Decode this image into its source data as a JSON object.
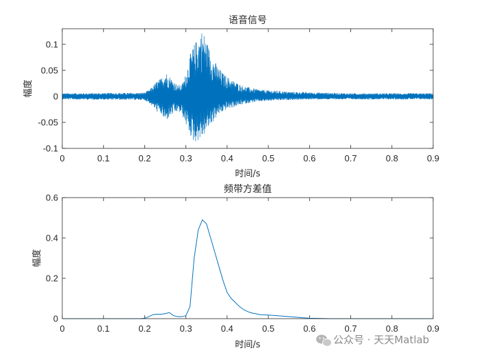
{
  "chart_data": [
    {
      "type": "line",
      "title": "语音信号",
      "xlabel": "时间/s",
      "ylabel": "幅度",
      "xlim": [
        0,
        0.9
      ],
      "ylim": [
        -0.1,
        0.13
      ],
      "xticks": [
        0,
        0.1,
        0.2,
        0.3,
        0.4,
        0.5,
        0.6,
        0.7,
        0.8,
        0.9
      ],
      "xtick_labels": [
        "0",
        "0.1",
        "0.2",
        "0.3",
        "0.4",
        "0.5",
        "0.6",
        "0.7",
        "0.8",
        "0.9"
      ],
      "yticks": [
        -0.1,
        -0.05,
        0,
        0.05,
        0.1
      ],
      "ytick_labels": [
        "-0.1",
        "-0.05",
        "0",
        "0.05",
        "0.1"
      ],
      "grid": false,
      "color": "#0072BD",
      "envelope": {
        "x": [
          0,
          0.19,
          0.2,
          0.21,
          0.22,
          0.23,
          0.24,
          0.25,
          0.26,
          0.27,
          0.28,
          0.29,
          0.3,
          0.31,
          0.32,
          0.33,
          0.34,
          0.35,
          0.36,
          0.37,
          0.38,
          0.39,
          0.4,
          0.42,
          0.44,
          0.46,
          0.48,
          0.5,
          0.52,
          0.55,
          0.6,
          0.65,
          0.7,
          0.8,
          0.9
        ],
        "upper": [
          0.006,
          0.007,
          0.008,
          0.012,
          0.02,
          0.03,
          0.035,
          0.048,
          0.04,
          0.03,
          0.022,
          0.022,
          0.045,
          0.08,
          0.1,
          0.115,
          0.13,
          0.11,
          0.085,
          0.068,
          0.055,
          0.045,
          0.038,
          0.028,
          0.02,
          0.016,
          0.013,
          0.012,
          0.011,
          0.009,
          0.008,
          0.007,
          0.006,
          0.006,
          0.006
        ],
        "lower": [
          -0.006,
          -0.007,
          -0.008,
          -0.012,
          -0.02,
          -0.03,
          -0.035,
          -0.05,
          -0.04,
          -0.035,
          -0.03,
          -0.035,
          -0.055,
          -0.075,
          -0.09,
          -0.085,
          -0.08,
          -0.068,
          -0.055,
          -0.045,
          -0.035,
          -0.03,
          -0.025,
          -0.02,
          -0.015,
          -0.012,
          -0.01,
          -0.009,
          -0.008,
          -0.007,
          -0.006,
          -0.006,
          -0.006,
          -0.006,
          -0.006
        ]
      }
    },
    {
      "type": "line",
      "title": "频带方差值",
      "xlabel": "时间/s",
      "ylabel": "幅度",
      "xlim": [
        0,
        0.9
      ],
      "ylim": [
        0,
        0.6
      ],
      "xticks": [
        0,
        0.1,
        0.2,
        0.3,
        0.4,
        0.5,
        0.6,
        0.7,
        0.8,
        0.9
      ],
      "xtick_labels": [
        "0",
        "0.1",
        "0.2",
        "0.3",
        "0.4",
        "0.5",
        "0.6",
        "0.7",
        "0.8",
        "0.9"
      ],
      "yticks": [
        0,
        0.2,
        0.4,
        0.6
      ],
      "ytick_labels": [
        "0",
        "0.2",
        "0.4",
        "0.6"
      ],
      "grid": false,
      "color": "#0072BD",
      "x": [
        0,
        0.1,
        0.19,
        0.2,
        0.21,
        0.22,
        0.23,
        0.24,
        0.25,
        0.26,
        0.27,
        0.28,
        0.29,
        0.3,
        0.31,
        0.32,
        0.33,
        0.34,
        0.35,
        0.36,
        0.37,
        0.38,
        0.39,
        0.4,
        0.41,
        0.42,
        0.43,
        0.44,
        0.45,
        0.46,
        0.47,
        0.48,
        0.5,
        0.52,
        0.55,
        0.58,
        0.6,
        0.65,
        0.7,
        0.8,
        0.9
      ],
      "y": [
        0,
        0,
        0,
        0.002,
        0.01,
        0.02,
        0.022,
        0.022,
        0.025,
        0.03,
        0.015,
        0.01,
        0.01,
        0.015,
        0.06,
        0.3,
        0.44,
        0.49,
        0.47,
        0.4,
        0.33,
        0.26,
        0.19,
        0.13,
        0.1,
        0.08,
        0.06,
        0.045,
        0.035,
        0.028,
        0.024,
        0.02,
        0.018,
        0.015,
        0.01,
        0.005,
        0.002,
        0,
        0,
        0,
        0
      ]
    }
  ],
  "watermark": {
    "text": "公众号 · 天天Matlab",
    "icon": "wechat-icon"
  }
}
